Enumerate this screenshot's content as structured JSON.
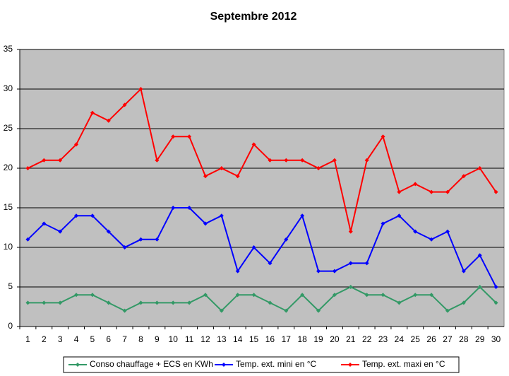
{
  "chart_data": {
    "type": "line",
    "title": "Septembre 2012",
    "categories": [
      "1",
      "2",
      "3",
      "4",
      "5",
      "6",
      "7",
      "8",
      "9",
      "10",
      "11",
      "12",
      "13",
      "14",
      "15",
      "16",
      "17",
      "18",
      "19",
      "20",
      "21",
      "22",
      "23",
      "24",
      "25",
      "26",
      "27",
      "28",
      "29",
      "30"
    ],
    "series": [
      {
        "name": "Conso chauffage + ECS en KWh",
        "color": "#339966",
        "values": [
          3,
          3,
          3,
          4,
          4,
          3,
          2,
          3,
          3,
          3,
          3,
          4,
          2,
          4,
          4,
          3,
          2,
          4,
          2,
          4,
          5,
          4,
          4,
          3,
          4,
          4,
          2,
          3,
          5,
          3
        ]
      },
      {
        "name": "Temp. ext. mini en °C",
        "color": "#0000ff",
        "values": [
          11,
          13,
          12,
          14,
          14,
          12,
          10,
          11,
          11,
          15,
          15,
          13,
          14,
          7,
          10,
          8,
          11,
          14,
          7,
          7,
          8,
          8,
          13,
          14,
          12,
          11,
          12,
          7,
          9,
          5
        ]
      },
      {
        "name": "Temp. ext. maxi en °C",
        "color": "#ff0000",
        "values": [
          20,
          21,
          21,
          23,
          27,
          26,
          28,
          30,
          21,
          24,
          24,
          19,
          20,
          19,
          23,
          21,
          21,
          21,
          20,
          21,
          12,
          21,
          24,
          17,
          18,
          17,
          17,
          19,
          20,
          17
        ]
      }
    ],
    "ylim": [
      0,
      35
    ],
    "yticks": [
      0,
      5,
      10,
      15,
      20,
      25,
      30,
      35
    ],
    "grid": true,
    "legend": "bottom"
  }
}
